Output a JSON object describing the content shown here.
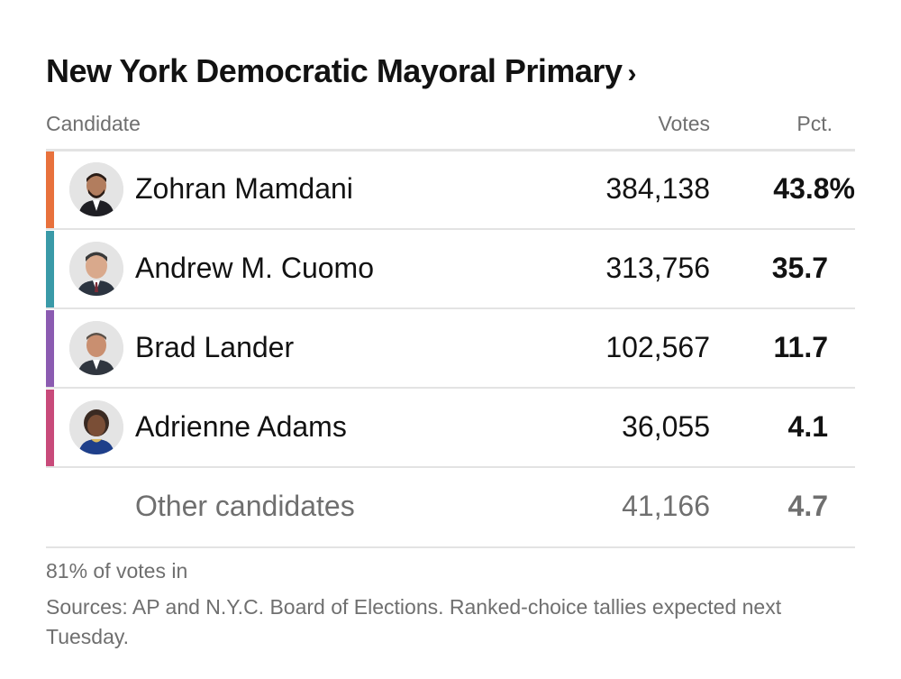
{
  "header": {
    "title": "New York Democratic Mayoral Primary",
    "title_chevron": "›",
    "col_candidate": "Candidate",
    "col_votes": "Votes",
    "col_pct": "Pct."
  },
  "chart_data": {
    "type": "table",
    "title": "New York Democratic Mayoral Primary",
    "columns": [
      "Candidate",
      "Votes",
      "Pct."
    ],
    "rows": [
      {
        "candidate": "Zohran Mamdani",
        "votes": "384,138",
        "pct": "43.8%",
        "color": "#e8713c"
      },
      {
        "candidate": "Andrew M. Cuomo",
        "votes": "313,756",
        "pct": "35.7",
        "color": "#3a9aa8"
      },
      {
        "candidate": "Brad Lander",
        "votes": "102,567",
        "pct": "11.7",
        "color": "#8b5bb1"
      },
      {
        "candidate": "Adrienne Adams",
        "votes": "36,055",
        "pct": "4.1",
        "color": "#c84a7a"
      },
      {
        "candidate": "Other candidates",
        "votes": "41,166",
        "pct": "4.7",
        "color": ""
      }
    ]
  },
  "footer": {
    "reporting": "81% of votes in",
    "sources": "Sources: AP and N.Y.C. Board of Elections. Ranked-choice tallies expected next Tuesday."
  }
}
